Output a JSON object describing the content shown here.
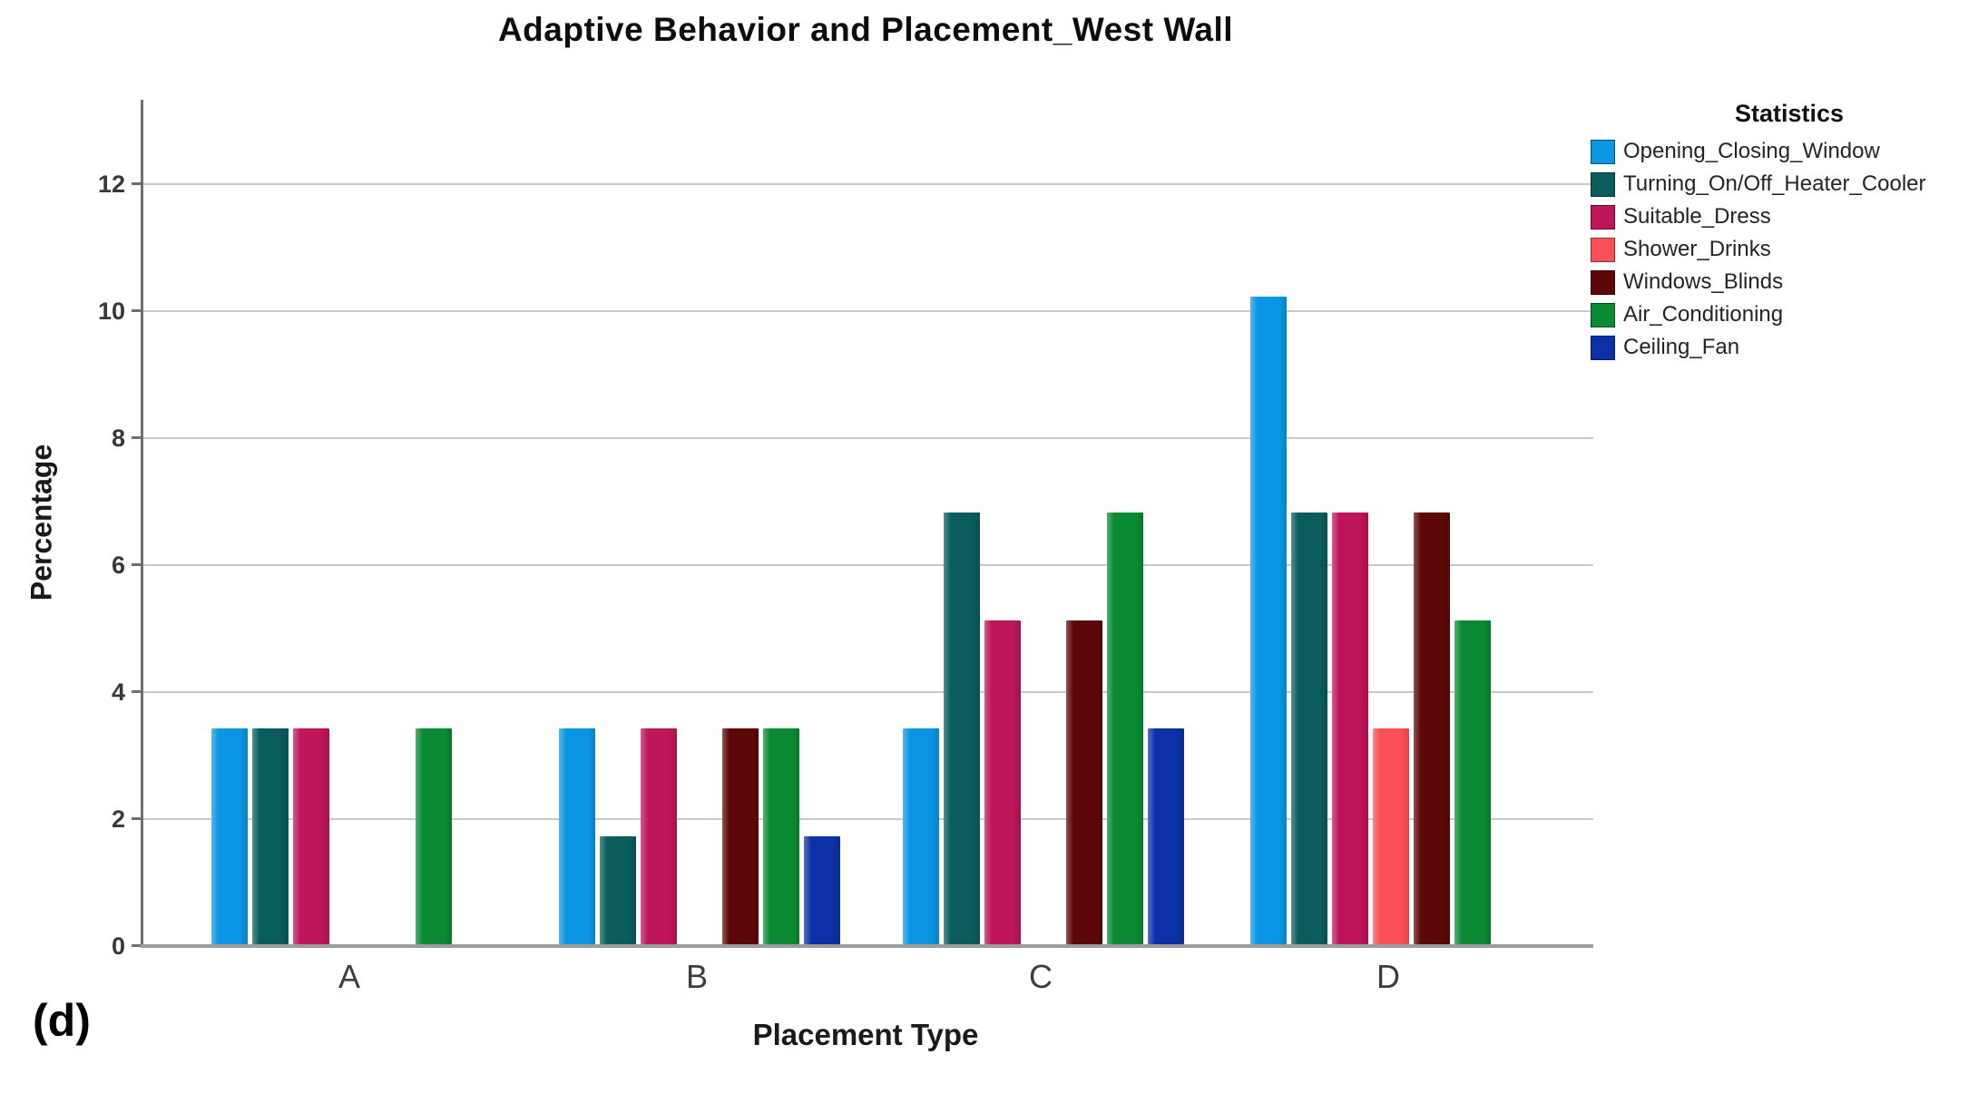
{
  "panel_label": "(d)",
  "chart": {
    "title": "Adaptive Behavior and Placement_West Wall",
    "x_axis_label": "Placement Type",
    "y_axis_label": "Percentage",
    "legend_title": "Statistics"
  },
  "chart_data": {
    "type": "bar",
    "title": "Adaptive Behavior and Placement_West Wall",
    "xlabel": "Placement Type",
    "ylabel": "Percentage",
    "categories": [
      "A",
      "B",
      "C",
      "D"
    ],
    "series": [
      {
        "name": "Opening_Closing_Window",
        "color": "#0b96e3",
        "values": [
          3.4,
          3.4,
          3.4,
          10.2
        ]
      },
      {
        "name": "Turning_On/Off_Heater_Cooler",
        "color": "#0b5c5d",
        "values": [
          3.4,
          1.7,
          6.8,
          6.8
        ]
      },
      {
        "name": "Suitable_Dress",
        "color": "#bf1559",
        "values": [
          3.4,
          3.4,
          5.1,
          6.8
        ]
      },
      {
        "name": "Shower_Drinks",
        "color": "#fc5058",
        "values": [
          0,
          0,
          0,
          3.4
        ]
      },
      {
        "name": "Windows_Blinds",
        "color": "#5e0708",
        "values": [
          0,
          3.4,
          5.1,
          6.8
        ]
      },
      {
        "name": "Air_Conditioning",
        "color": "#0a8b33",
        "values": [
          3.4,
          3.4,
          6.8,
          5.1
        ]
      },
      {
        "name": "Ceiling_Fan",
        "color": "#0c31a6",
        "values": [
          0,
          1.7,
          3.4,
          0
        ]
      }
    ],
    "y_ticks": [
      0,
      2,
      4,
      6,
      8,
      10,
      12
    ],
    "ylim": [
      0,
      13.3
    ],
    "grid": true,
    "legend_title": "Statistics",
    "legend_position": "right"
  },
  "style": {
    "gridline_color": "#c9c9c9",
    "baseline_color": "#9c9c9c",
    "axis_color": "#6f6f6f"
  }
}
